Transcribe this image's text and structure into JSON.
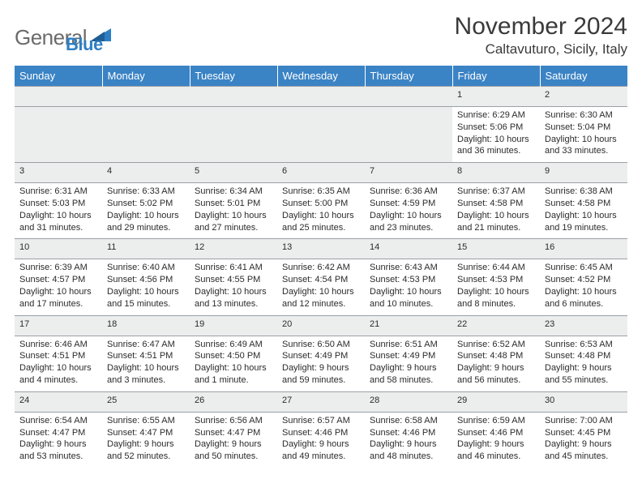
{
  "logo": {
    "text1": "General",
    "text2": "Blue",
    "shape_color": "#2d7fc4"
  },
  "title": "November 2024",
  "location": "Caltavuturo, Sicily, Italy",
  "header_bg": "#3a83c5",
  "daynum_bg": "#eceded",
  "days": [
    "Sunday",
    "Monday",
    "Tuesday",
    "Wednesday",
    "Thursday",
    "Friday",
    "Saturday"
  ],
  "weeks": [
    [
      null,
      null,
      null,
      null,
      null,
      {
        "n": "1",
        "sr": "Sunrise: 6:29 AM",
        "ss": "Sunset: 5:06 PM",
        "dl": "Daylight: 10 hours and 36 minutes."
      },
      {
        "n": "2",
        "sr": "Sunrise: 6:30 AM",
        "ss": "Sunset: 5:04 PM",
        "dl": "Daylight: 10 hours and 33 minutes."
      }
    ],
    [
      {
        "n": "3",
        "sr": "Sunrise: 6:31 AM",
        "ss": "Sunset: 5:03 PM",
        "dl": "Daylight: 10 hours and 31 minutes."
      },
      {
        "n": "4",
        "sr": "Sunrise: 6:33 AM",
        "ss": "Sunset: 5:02 PM",
        "dl": "Daylight: 10 hours and 29 minutes."
      },
      {
        "n": "5",
        "sr": "Sunrise: 6:34 AM",
        "ss": "Sunset: 5:01 PM",
        "dl": "Daylight: 10 hours and 27 minutes."
      },
      {
        "n": "6",
        "sr": "Sunrise: 6:35 AM",
        "ss": "Sunset: 5:00 PM",
        "dl": "Daylight: 10 hours and 25 minutes."
      },
      {
        "n": "7",
        "sr": "Sunrise: 6:36 AM",
        "ss": "Sunset: 4:59 PM",
        "dl": "Daylight: 10 hours and 23 minutes."
      },
      {
        "n": "8",
        "sr": "Sunrise: 6:37 AM",
        "ss": "Sunset: 4:58 PM",
        "dl": "Daylight: 10 hours and 21 minutes."
      },
      {
        "n": "9",
        "sr": "Sunrise: 6:38 AM",
        "ss": "Sunset: 4:58 PM",
        "dl": "Daylight: 10 hours and 19 minutes."
      }
    ],
    [
      {
        "n": "10",
        "sr": "Sunrise: 6:39 AM",
        "ss": "Sunset: 4:57 PM",
        "dl": "Daylight: 10 hours and 17 minutes."
      },
      {
        "n": "11",
        "sr": "Sunrise: 6:40 AM",
        "ss": "Sunset: 4:56 PM",
        "dl": "Daylight: 10 hours and 15 minutes."
      },
      {
        "n": "12",
        "sr": "Sunrise: 6:41 AM",
        "ss": "Sunset: 4:55 PM",
        "dl": "Daylight: 10 hours and 13 minutes."
      },
      {
        "n": "13",
        "sr": "Sunrise: 6:42 AM",
        "ss": "Sunset: 4:54 PM",
        "dl": "Daylight: 10 hours and 12 minutes."
      },
      {
        "n": "14",
        "sr": "Sunrise: 6:43 AM",
        "ss": "Sunset: 4:53 PM",
        "dl": "Daylight: 10 hours and 10 minutes."
      },
      {
        "n": "15",
        "sr": "Sunrise: 6:44 AM",
        "ss": "Sunset: 4:53 PM",
        "dl": "Daylight: 10 hours and 8 minutes."
      },
      {
        "n": "16",
        "sr": "Sunrise: 6:45 AM",
        "ss": "Sunset: 4:52 PM",
        "dl": "Daylight: 10 hours and 6 minutes."
      }
    ],
    [
      {
        "n": "17",
        "sr": "Sunrise: 6:46 AM",
        "ss": "Sunset: 4:51 PM",
        "dl": "Daylight: 10 hours and 4 minutes."
      },
      {
        "n": "18",
        "sr": "Sunrise: 6:47 AM",
        "ss": "Sunset: 4:51 PM",
        "dl": "Daylight: 10 hours and 3 minutes."
      },
      {
        "n": "19",
        "sr": "Sunrise: 6:49 AM",
        "ss": "Sunset: 4:50 PM",
        "dl": "Daylight: 10 hours and 1 minute."
      },
      {
        "n": "20",
        "sr": "Sunrise: 6:50 AM",
        "ss": "Sunset: 4:49 PM",
        "dl": "Daylight: 9 hours and 59 minutes."
      },
      {
        "n": "21",
        "sr": "Sunrise: 6:51 AM",
        "ss": "Sunset: 4:49 PM",
        "dl": "Daylight: 9 hours and 58 minutes."
      },
      {
        "n": "22",
        "sr": "Sunrise: 6:52 AM",
        "ss": "Sunset: 4:48 PM",
        "dl": "Daylight: 9 hours and 56 minutes."
      },
      {
        "n": "23",
        "sr": "Sunrise: 6:53 AM",
        "ss": "Sunset: 4:48 PM",
        "dl": "Daylight: 9 hours and 55 minutes."
      }
    ],
    [
      {
        "n": "24",
        "sr": "Sunrise: 6:54 AM",
        "ss": "Sunset: 4:47 PM",
        "dl": "Daylight: 9 hours and 53 minutes."
      },
      {
        "n": "25",
        "sr": "Sunrise: 6:55 AM",
        "ss": "Sunset: 4:47 PM",
        "dl": "Daylight: 9 hours and 52 minutes."
      },
      {
        "n": "26",
        "sr": "Sunrise: 6:56 AM",
        "ss": "Sunset: 4:47 PM",
        "dl": "Daylight: 9 hours and 50 minutes."
      },
      {
        "n": "27",
        "sr": "Sunrise: 6:57 AM",
        "ss": "Sunset: 4:46 PM",
        "dl": "Daylight: 9 hours and 49 minutes."
      },
      {
        "n": "28",
        "sr": "Sunrise: 6:58 AM",
        "ss": "Sunset: 4:46 PM",
        "dl": "Daylight: 9 hours and 48 minutes."
      },
      {
        "n": "29",
        "sr": "Sunrise: 6:59 AM",
        "ss": "Sunset: 4:46 PM",
        "dl": "Daylight: 9 hours and 46 minutes."
      },
      {
        "n": "30",
        "sr": "Sunrise: 7:00 AM",
        "ss": "Sunset: 4:45 PM",
        "dl": "Daylight: 9 hours and 45 minutes."
      }
    ]
  ]
}
